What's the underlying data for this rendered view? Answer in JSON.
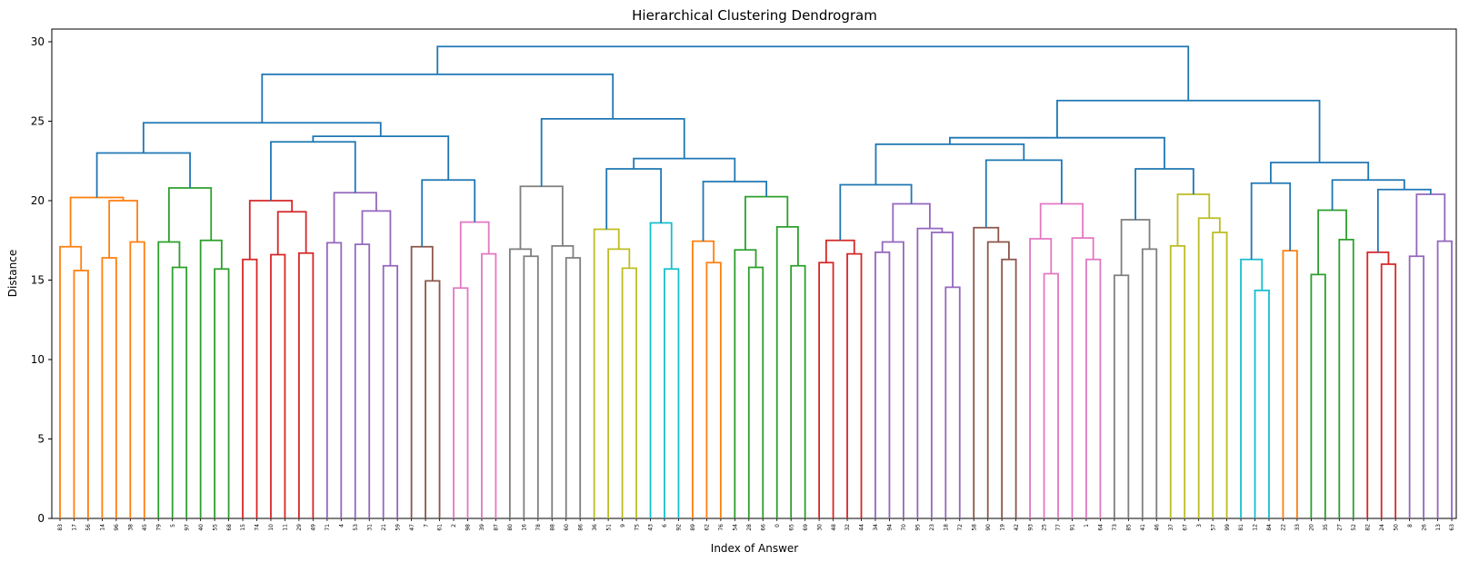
{
  "figure": {
    "title": "Hierarchical Clustering Dendrogram",
    "xlabel": "Index of Answer",
    "ylabel": "Distance"
  },
  "chart_data": {
    "type": "dendrogram",
    "title": "Hierarchical Clustering Dendrogram",
    "xlabel": "Index of Answer",
    "ylabel": "Distance",
    "ylim": [
      0,
      30.8
    ],
    "yticks": [
      0,
      5,
      10,
      15,
      20,
      25,
      30
    ],
    "grid": false,
    "legend": "none",
    "above_threshold_color": "#1f77b4",
    "palette": {
      "B": "#1f77b4",
      "O": "#ff7f0e",
      "G": "#2ca02c",
      "R": "#d62728",
      "P": "#9467bd",
      "Br": "#8c564b",
      "Pk": "#e377c2",
      "Gy": "#7f7f7f",
      "Ol": "#bcbd22",
      "Cy": "#17becf"
    },
    "leaf_order": [
      "83",
      "17",
      "56",
      "14",
      "96",
      "38",
      "45",
      "79",
      "5",
      "97",
      "40",
      "55",
      "68",
      "15",
      "74",
      "10",
      "11",
      "29",
      "49",
      "71",
      "4",
      "53",
      "31",
      "21",
      "59",
      "47",
      "7",
      "61",
      "2",
      "98",
      "39",
      "87",
      "80",
      "16",
      "78",
      "88",
      "60",
      "86",
      "36",
      "51",
      "9",
      "75",
      "43",
      "6",
      "92",
      "89",
      "62",
      "76",
      "54",
      "28",
      "66",
      "0",
      "65",
      "69",
      "30",
      "48",
      "32",
      "44",
      "34",
      "94",
      "70",
      "95",
      "23",
      "18",
      "72",
      "58",
      "90",
      "19",
      "42",
      "93",
      "25",
      "77",
      "91",
      "1",
      "64",
      "73",
      "85",
      "41",
      "46",
      "37",
      "67",
      "3",
      "57",
      "99",
      "81",
      "12",
      "84",
      "22",
      "33",
      "20",
      "35",
      "27",
      "52",
      "82",
      "24",
      "50",
      "8",
      "26",
      "13",
      "63"
    ],
    "tree": [
      "B",
      29.7,
      [
        "B",
        27.95,
        [
          "B",
          24.9,
          [
            "B",
            23.0,
            [
              "O",
              20.2,
              [
                "O",
                17.1,
                "83",
                [
                  "O",
                  15.6,
                  "17",
                  "56"
                ]
              ],
              [
                "O",
                20.0,
                [
                  "O",
                  16.4,
                  "14",
                  "96"
                ],
                [
                  "O",
                  17.4,
                  "38",
                  "45"
                ]
              ]
            ],
            [
              "G",
              20.8,
              [
                "G",
                17.4,
                "79",
                [
                  "G",
                  15.8,
                  "5",
                  "97"
                ]
              ],
              [
                "G",
                17.5,
                "40",
                [
                  "G",
                  15.7,
                  "55",
                  "68"
                ]
              ]
            ]
          ],
          [
            "B",
            24.05,
            [
              "B",
              23.7,
              [
                "R",
                20.0,
                [
                  "R",
                  16.3,
                  "15",
                  "74"
                ],
                [
                  "R",
                  19.3,
                  [
                    "R",
                    16.6,
                    "10",
                    "11"
                  ],
                  [
                    "R",
                    16.7,
                    "29",
                    "49"
                  ]
                ]
              ],
              [
                "P",
                20.5,
                [
                  "P",
                  17.35,
                  "71",
                  "4"
                ],
                [
                  "P",
                  19.35,
                  [
                    "P",
                    17.25,
                    "53",
                    "31"
                  ],
                  [
                    "P",
                    15.9,
                    "21",
                    "59"
                  ]
                ]
              ]
            ],
            [
              "B",
              21.3,
              [
                "Br",
                17.1,
                "47",
                [
                  "Br",
                  14.95,
                  "7",
                  "61"
                ]
              ],
              [
                "Pk",
                18.65,
                [
                  "Pk",
                  14.5,
                  "2",
                  "98"
                ],
                [
                  "Pk",
                  16.65,
                  "39",
                  "87"
                ]
              ]
            ]
          ]
        ],
        [
          "B",
          25.15,
          [
            "Gy",
            20.9,
            [
              "Gy",
              16.95,
              "80",
              [
                "Gy",
                16.5,
                "16",
                "78"
              ]
            ],
            [
              "Gy",
              17.15,
              "88",
              [
                "Gy",
                16.4,
                "60",
                "86"
              ]
            ]
          ],
          [
            "B",
            22.65,
            [
              "B",
              22.0,
              [
                "Ol",
                18.2,
                "36",
                [
                  "Ol",
                  16.95,
                  "51",
                  [
                    "Ol",
                    15.75,
                    "9",
                    "75"
                  ]
                ]
              ],
              [
                "Cy",
                18.6,
                "43",
                [
                  "Cy",
                  15.7,
                  "6",
                  "92"
                ]
              ]
            ],
            [
              "B",
              21.2,
              [
                "O",
                17.45,
                "89",
                [
                  "O",
                  16.1,
                  "62",
                  "76"
                ]
              ],
              [
                "G",
                20.25,
                [
                  "G",
                  16.9,
                  "54",
                  [
                    "G",
                    15.8,
                    "28",
                    "66"
                  ]
                ],
                [
                  "G",
                  18.35,
                  "0",
                  [
                    "G",
                    15.9,
                    "65",
                    "69"
                  ]
                ]
              ]
            ]
          ]
        ]
      ],
      [
        "B",
        26.3,
        [
          "B",
          23.96,
          [
            "B",
            23.55,
            [
              "B",
              21.0,
              [
                "R",
                17.5,
                [
                  "R",
                  16.1,
                  "30",
                  "48"
                ],
                [
                  "R",
                  16.65,
                  "32",
                  "44"
                ]
              ],
              [
                "P",
                19.8,
                [
                  "P",
                  17.4,
                  [
                    "P",
                    16.75,
                    "34",
                    "94"
                  ],
                  "70"
                ],
                [
                  "P",
                  18.25,
                  "95",
                  [
                    "P",
                    18.0,
                    "23",
                    [
                      "P",
                      14.55,
                      "18",
                      "72"
                    ]
                  ]
                ]
              ]
            ],
            [
              "B",
              22.55,
              [
                "Br",
                18.3,
                "58",
                [
                  "Br",
                  17.4,
                  "90",
                  [
                    "Br",
                    16.3,
                    "19",
                    "42"
                  ]
                ]
              ],
              [
                "Pk",
                19.8,
                [
                  "Pk",
                  17.6,
                  "93",
                  [
                    "Pk",
                    15.4,
                    "25",
                    "77"
                  ]
                ],
                [
                  "Pk",
                  17.65,
                  "91",
                  [
                    "Pk",
                    16.3,
                    "1",
                    "64"
                  ]
                ]
              ]
            ]
          ],
          [
            "B",
            22.0,
            [
              "Gy",
              18.8,
              [
                "Gy",
                15.3,
                "73",
                "85"
              ],
              [
                "Gy",
                16.95,
                "41",
                "46"
              ]
            ],
            [
              "Ol",
              20.4,
              [
                "Ol",
                17.15,
                "37",
                "67"
              ],
              [
                "Ol",
                18.9,
                "3",
                [
                  "Ol",
                  18.0,
                  "57",
                  "99"
                ]
              ]
            ]
          ]
        ],
        [
          "B",
          22.4,
          [
            "B",
            21.1,
            [
              "Cy",
              16.3,
              "81",
              [
                "Cy",
                14.35,
                "12",
                "84"
              ]
            ],
            [
              "O",
              16.85,
              "22",
              "33"
            ]
          ],
          [
            "B",
            21.3,
            [
              "G",
              19.4,
              [
                "G",
                15.35,
                "20",
                "35"
              ],
              [
                "G",
                17.55,
                "27",
                "52"
              ]
            ],
            [
              "B",
              20.7,
              [
                "R",
                16.75,
                "82",
                [
                  "R",
                  16.0,
                  "24",
                  "50"
                ]
              ],
              [
                "P",
                20.4,
                [
                  "P",
                  16.5,
                  "8",
                  "26"
                ],
                [
                  "P",
                  17.45,
                  "13",
                  "63"
                ]
              ]
            ]
          ]
        ]
      ]
    ]
  }
}
